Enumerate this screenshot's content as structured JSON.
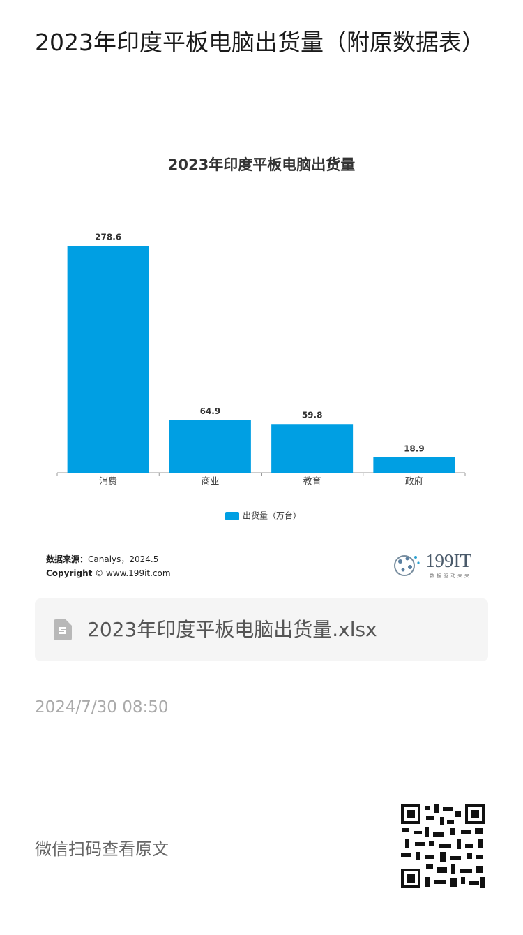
{
  "header": {
    "title": "2023年印度平板电脑出货量（附原数据表）"
  },
  "chart_data": {
    "type": "bar",
    "title": "2023年印度平板电脑出货量",
    "categories": [
      "消费",
      "商业",
      "教育",
      "政府"
    ],
    "series": [
      {
        "name": "出货量（万台）",
        "color": "#009fe3",
        "values": [
          278.6,
          64.9,
          59.8,
          18.9
        ]
      }
    ],
    "legend": "bottom"
  },
  "source": {
    "label": "数据来源：",
    "text": "Canalys，2024.5"
  },
  "copyright": {
    "label": "Copyright",
    "text": "© www.199it.com"
  },
  "logo": {
    "text": "199IT",
    "tagline": "数据驱动未来"
  },
  "attachment": {
    "filename": "2023年印度平板电脑出货量.xlsx"
  },
  "date": "2024/7/30 08:50",
  "footer": {
    "text": "微信扫码查看原文"
  }
}
